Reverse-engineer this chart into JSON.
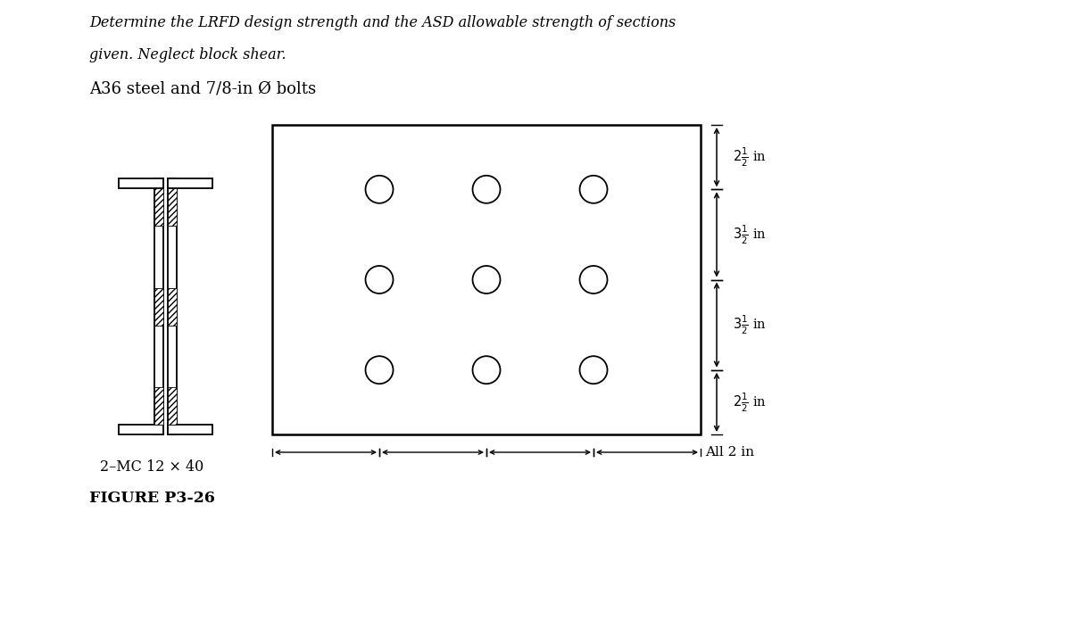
{
  "title_line1": "Determine the LRFD design strength and the ASD allowable strength of sections",
  "title_line2": "given. Neglect block shear.",
  "subtitle": "A36 steel and 7/8-in Ø bolts",
  "label_section": "2–MC 12 × 40",
  "label_figure": "FIGURE P3-26",
  "label_all2in": "All 2 in",
  "bg_color": "#ffffff",
  "line_color": "#000000",
  "dim_labels": [
    "$2\\frac{1}{2}$ in",
    "$3\\frac{1}{2}$ in",
    "$3\\frac{1}{2}$ in",
    "$2\\frac{1}{2}$ in"
  ]
}
